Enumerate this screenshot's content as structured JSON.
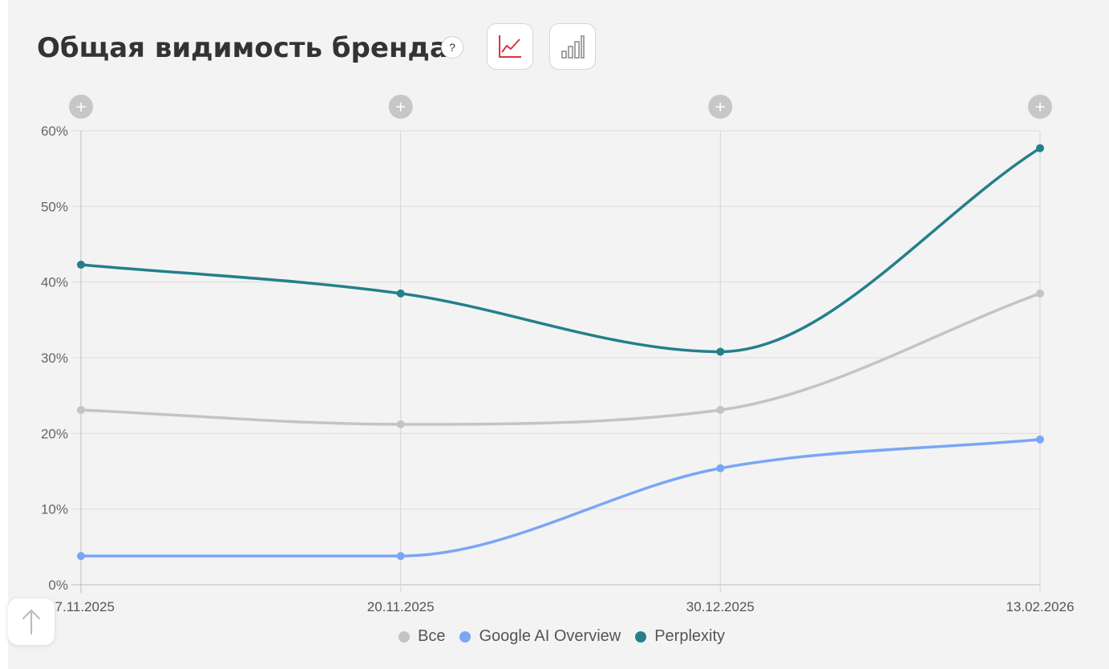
{
  "header": {
    "title": "Общая видимость бренда",
    "help_label": "?"
  },
  "toolbar": {
    "line_view_icon": "line-chart-icon",
    "bar_view_icon": "bar-chart-icon",
    "active_view": "line"
  },
  "colors": {
    "all": "#c4c4c4",
    "google": "#7aa6f5",
    "perplexity": "#247f8b",
    "active_icon": "#d9343d",
    "inactive_icon": "#9a9a9a"
  },
  "chart_data": {
    "type": "line",
    "x": [
      "17.11.2025",
      "20.11.2025",
      "30.12.2025",
      "13.02.2026"
    ],
    "y_ticks": [
      "0%",
      "10%",
      "20%",
      "30%",
      "40%",
      "50%",
      "60%"
    ],
    "ylim": [
      0,
      60
    ],
    "grid": true,
    "legend_position": "bottom",
    "series": [
      {
        "name": "Все",
        "color": "#c4c4c4",
        "values": [
          23.1,
          21.2,
          23.1,
          38.5
        ]
      },
      {
        "name": "Google AI Overview",
        "color": "#7aa6f5",
        "values": [
          3.8,
          3.8,
          15.4,
          19.2
        ]
      },
      {
        "name": "Perplexity",
        "color": "#247f8b",
        "values": [
          42.3,
          38.5,
          30.8,
          57.7
        ]
      }
    ],
    "add_annotation_label": "+"
  },
  "scroll_top_icon": "arrow-up-icon"
}
